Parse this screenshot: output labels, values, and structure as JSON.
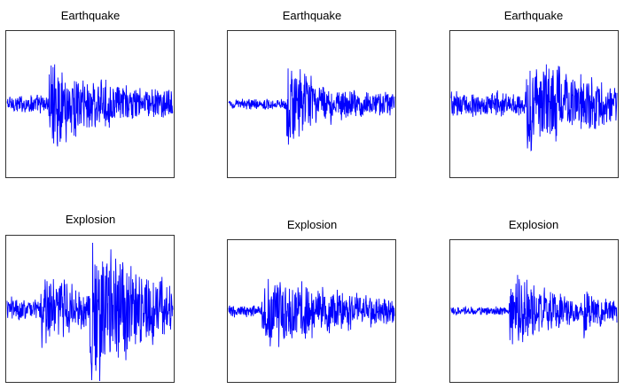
{
  "chart_data": [
    {
      "type": "line",
      "title": "Earthquake",
      "color": "#0000ff",
      "grid": false,
      "profile": {
        "noise": 0.15,
        "events": [
          {
            "t": 0.25,
            "amp": 0.55,
            "decay": 0.35
          }
        ]
      }
    },
    {
      "type": "line",
      "title": "Earthquake",
      "color": "#0000ff",
      "grid": false,
      "profile": {
        "noise": 0.08,
        "events": [
          {
            "t": 0.35,
            "amp": 0.75,
            "decay": 0.08
          },
          {
            "t": 0.42,
            "amp": 0.25,
            "decay": 0.6
          }
        ]
      }
    },
    {
      "type": "line",
      "title": "Earthquake",
      "color": "#0000ff",
      "grid": false,
      "profile": {
        "noise": 0.2,
        "events": [
          {
            "t": 0.45,
            "amp": 0.6,
            "decay": 0.4
          }
        ]
      }
    },
    {
      "type": "line",
      "title": "Explosion",
      "color": "#0000ff",
      "grid": false,
      "profile": {
        "noise": 0.18,
        "events": [
          {
            "t": 0.2,
            "amp": 0.5,
            "decay": 0.25
          },
          {
            "t": 0.5,
            "amp": 0.95,
            "decay": 0.35
          }
        ]
      }
    },
    {
      "type": "line",
      "title": "Explosion",
      "color": "#0000ff",
      "grid": false,
      "profile": {
        "noise": 0.1,
        "events": [
          {
            "t": 0.2,
            "amp": 0.65,
            "decay": 0.45
          }
        ]
      }
    },
    {
      "type": "line",
      "title": "Explosion",
      "color": "#0000ff",
      "grid": false,
      "profile": {
        "noise": 0.07,
        "events": [
          {
            "t": 0.35,
            "amp": 0.6,
            "decay": 0.3
          },
          {
            "t": 0.8,
            "amp": 0.2,
            "decay": 0.1
          }
        ]
      }
    }
  ]
}
